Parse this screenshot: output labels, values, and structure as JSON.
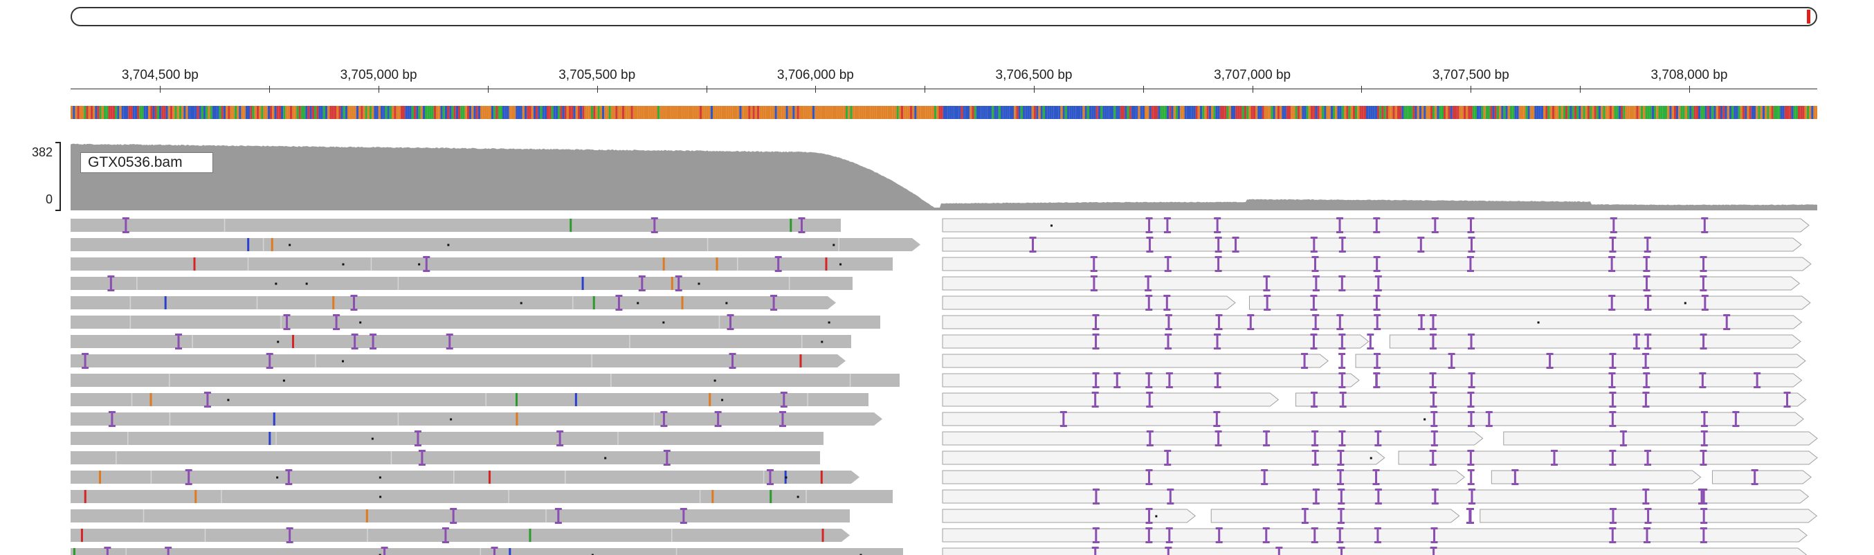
{
  "ruler": {
    "ticks": [
      {
        "label": "3,704,500 bp",
        "bp": 3704500
      },
      {
        "label": "3,705,000 bp",
        "bp": 3705000
      },
      {
        "label": "3,705,500 bp",
        "bp": 3705500
      },
      {
        "label": "3,706,000 bp",
        "bp": 3706000
      },
      {
        "label": "3,706,500 bp",
        "bp": 3706500
      },
      {
        "label": "3,707,000 bp",
        "bp": 3707000
      },
      {
        "label": "3,707,500 bp",
        "bp": 3707500
      },
      {
        "label": "3,708,000 bp",
        "bp": 3708000
      }
    ]
  },
  "coverage": {
    "scale_max": "382",
    "scale_min": "0",
    "track_name": "GTX0536.bam"
  },
  "colors": {
    "coverage": "#9a9a9a",
    "read_left": "#b9b9b9",
    "read_right_fill": "#f4f4f4",
    "read_right_stroke": "#a0a0a0",
    "insertion": "#8a4fb0",
    "mismatch_red": "#d62424",
    "mismatch_blue": "#2a3fd0",
    "mismatch_green": "#2a9a2a",
    "mismatch_orange": "#e07a20",
    "base_A": "#2eae3a",
    "base_C": "#2e57c8",
    "base_G": "#e0822a",
    "base_T": "#d43a3a"
  }
}
